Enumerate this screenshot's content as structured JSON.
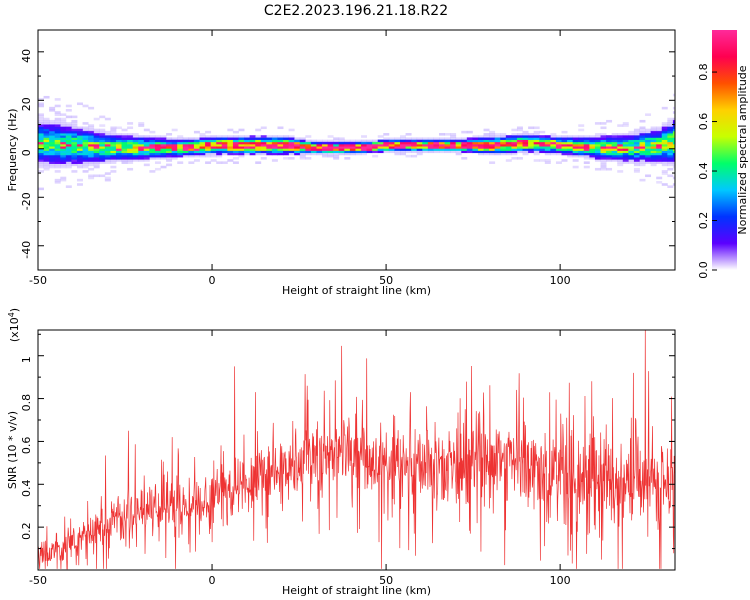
{
  "title": "C2E2.2023.196.21.18.R22",
  "chart_data": [
    {
      "type": "heatmap",
      "xlabel": "Height of straight line (km)",
      "ylabel": "Frequency (Hz)",
      "xlim": [
        -50,
        133
      ],
      "ylim": [
        -50,
        49
      ],
      "x_ticks": [
        -50,
        0,
        50,
        100
      ],
      "y_ticks": [
        -40,
        -20,
        0,
        20,
        40
      ],
      "colorbar": {
        "label": "Normalized spectral amplitude",
        "range": [
          0,
          0.97
        ],
        "ticks": [
          "0.0",
          "0.2",
          "0.4",
          "0.6",
          "0.8"
        ],
        "colormap": [
          "#ffffff",
          "#5b00ff",
          "#0033ff",
          "#00c8ff",
          "#00ff6a",
          "#c8ff00",
          "#ffd000",
          "#ff5000",
          "#ff0050",
          "#ff2a9a"
        ]
      },
      "ridge": {
        "description": "spectral energy concentrated along 0 Hz",
        "x": [
          -50,
          -40,
          -30,
          -20,
          -10,
          0,
          10,
          20,
          30,
          40,
          50,
          60,
          70,
          80,
          90,
          100,
          110,
          120,
          128,
          133
        ],
        "center_hz": [
          2,
          1,
          0,
          0,
          0,
          1,
          1,
          1,
          0,
          0,
          1,
          1,
          1,
          1,
          2,
          1,
          0,
          0,
          1,
          3
        ],
        "peak_amplitude": [
          0.5,
          0.5,
          0.55,
          0.6,
          0.7,
          0.85,
          0.9,
          0.9,
          0.95,
          0.95,
          0.95,
          0.95,
          0.95,
          0.9,
          0.75,
          0.7,
          0.6,
          0.55,
          0.6,
          0.6
        ],
        "spread_hz": [
          8,
          7,
          5,
          4,
          3,
          3,
          3,
          3,
          2,
          2,
          2,
          2,
          2,
          3,
          3,
          3,
          4,
          5,
          6,
          8
        ]
      }
    },
    {
      "type": "line",
      "xlabel": "Height of straight line (km)",
      "ylabel": "SNR (10 * v/v)",
      "yscale_label": "(x10^4)",
      "yscale_base": "x10",
      "yscale_exp": "4",
      "xlim": [
        -50,
        133
      ],
      "ylim": [
        0,
        1.12
      ],
      "x_ticks": [
        -50,
        0,
        50,
        100
      ],
      "y_ticks": [
        "0.2",
        "0.4",
        "0.6",
        "0.8",
        "1"
      ],
      "color": "#ee3333",
      "series": [
        {
          "x": [
            -50,
            -45,
            -40,
            -35,
            -30,
            -25,
            -20,
            -15,
            -10,
            -5,
            0,
            5,
            10,
            15,
            20,
            25,
            30,
            35,
            40,
            45,
            50,
            55,
            60,
            65,
            70,
            75,
            80,
            85,
            90,
            95,
            100,
            105,
            110,
            115,
            120,
            125,
            130,
            133
          ],
          "values": [
            0.06,
            0.09,
            0.12,
            0.17,
            0.22,
            0.25,
            0.28,
            0.3,
            0.29,
            0.3,
            0.32,
            0.36,
            0.4,
            0.45,
            0.47,
            0.5,
            0.51,
            0.53,
            0.55,
            0.53,
            0.5,
            0.47,
            0.47,
            0.48,
            0.49,
            0.5,
            0.5,
            0.52,
            0.5,
            0.46,
            0.43,
            0.42,
            0.4,
            0.41,
            0.4,
            0.42,
            0.4,
            0.4
          ]
        }
      ],
      "spikes": [
        {
          "x": 6.5,
          "value": 0.95
        },
        {
          "x": 12.5,
          "value": 0.83
        },
        {
          "x": -24,
          "value": 0.65
        },
        {
          "x": 124.5,
          "value": 1.12
        },
        {
          "x": 121,
          "value": 0.92
        }
      ]
    }
  ]
}
